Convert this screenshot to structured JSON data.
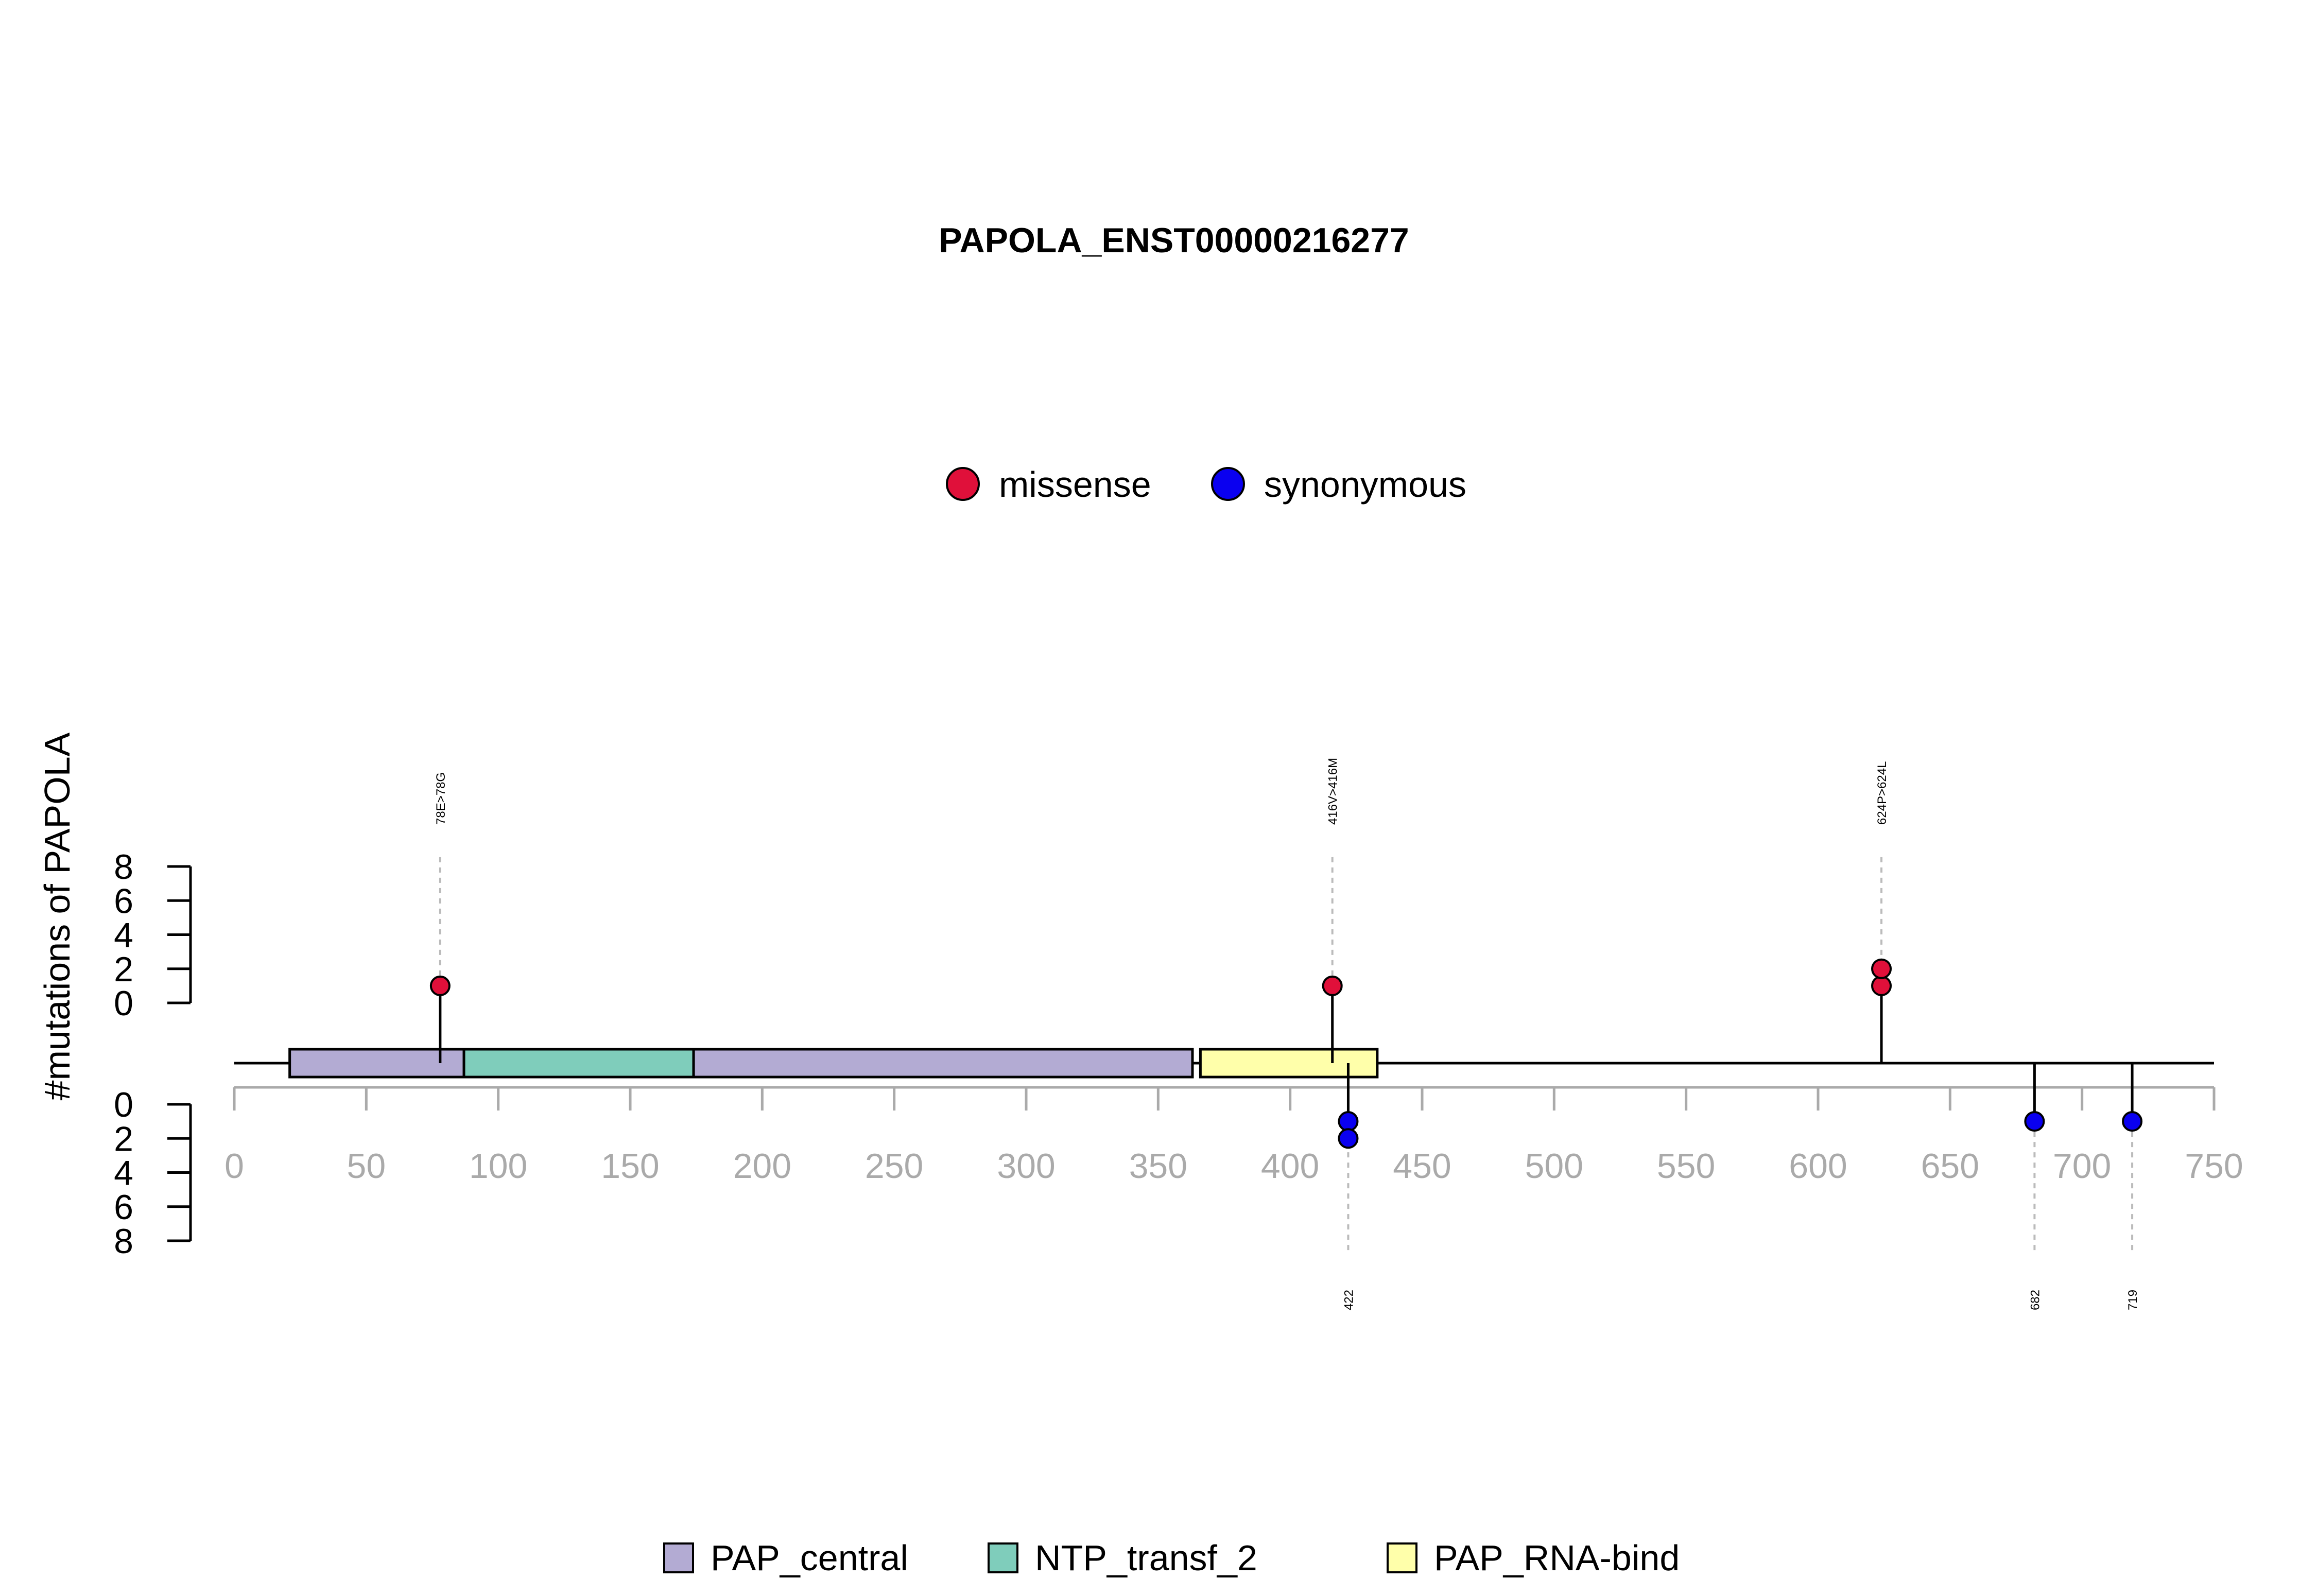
{
  "chart_data": {
    "type": "lollipop",
    "title": "PAPOLA_ENST00000216277",
    "ylabel": "#mutations of PAPOLA",
    "xlim": [
      0,
      750
    ],
    "x_ticks": [
      0,
      50,
      100,
      150,
      200,
      250,
      300,
      350,
      400,
      450,
      500,
      550,
      600,
      650,
      700,
      750
    ],
    "y_ticks_top": [
      0,
      2,
      4,
      6,
      8
    ],
    "y_ticks_bottom": [
      0,
      2,
      4,
      6,
      8
    ],
    "ylim": [
      0,
      8
    ],
    "protein_length": 750,
    "mutation_legend": [
      {
        "name": "missense",
        "color": "#E0103A"
      },
      {
        "name": "synonymous",
        "color": "#0A00F0"
      }
    ],
    "domain_legend": [
      {
        "name": "PAP_central",
        "color": "#B3ABD3"
      },
      {
        "name": "NTP_transf_2",
        "color": "#7FCDBB"
      },
      {
        "name": "PAP_RNA-bind",
        "color": "#FFFFAA"
      }
    ],
    "domains": [
      {
        "name": "PAP_central",
        "start": 21,
        "end": 87,
        "color": "#B3ABD3"
      },
      {
        "name": "NTP_transf_2",
        "start": 87,
        "end": 174,
        "color": "#7FCDBB"
      },
      {
        "name": "PAP_central",
        "start": 174,
        "end": 363,
        "color": "#B3ABD3"
      },
      {
        "name": "PAP_RNA-bind",
        "start": 366,
        "end": 433,
        "color": "#FFFFAA"
      }
    ],
    "mutations": [
      {
        "position": 78,
        "label": "78E>78G",
        "type": "missense",
        "count": 1,
        "side": "top"
      },
      {
        "position": 416,
        "label": "416V>416M",
        "type": "missense",
        "count": 1,
        "side": "top"
      },
      {
        "position": 624,
        "label": "624P>624L",
        "type": "missense",
        "count": 2,
        "side": "top"
      },
      {
        "position": 422,
        "label": "422",
        "type": "synonymous",
        "count": 2,
        "side": "bottom"
      },
      {
        "position": 682,
        "label": "682",
        "type": "synonymous",
        "count": 1,
        "side": "bottom"
      },
      {
        "position": 719,
        "label": "719",
        "type": "synonymous",
        "count": 1,
        "side": "bottom"
      }
    ]
  }
}
